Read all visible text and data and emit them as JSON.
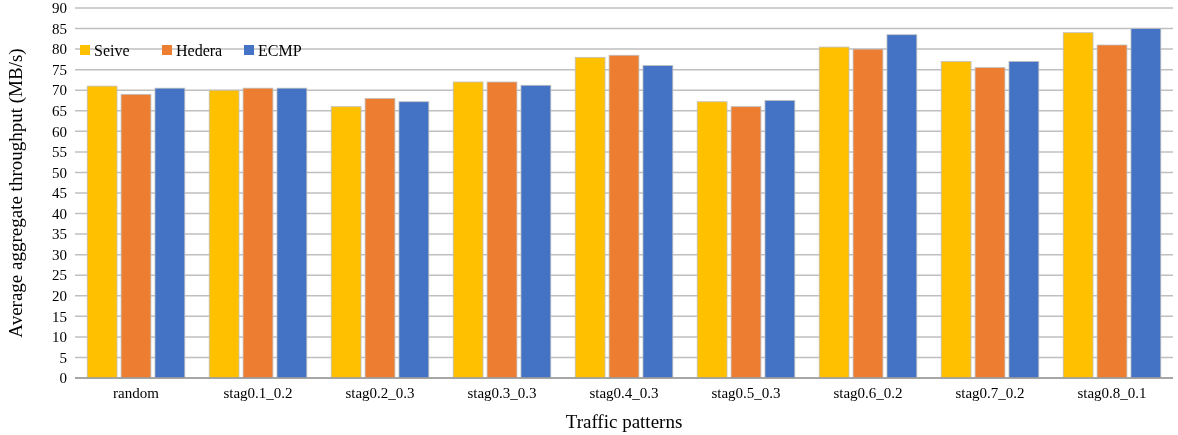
{
  "chart_data": {
    "type": "bar",
    "xlabel": "Traffic patterns",
    "ylabel": "Average aggregate throughput (MB/s)",
    "categories": [
      "random",
      "stag0.1_0.2",
      "stag0.2_0.3",
      "stag0.3_0.3",
      "stag0.4_0.3",
      "stag0.5_0.3",
      "stag0.6_0.2",
      "stag0.7_0.2",
      "stag0.8_0.1"
    ],
    "series": [
      {
        "name": "Seive",
        "color": "#ffc000",
        "values": [
          71,
          70,
          66,
          72,
          78,
          67.2,
          80.5,
          77,
          84
        ]
      },
      {
        "name": "Hedera",
        "color": "#ed7d31",
        "values": [
          69,
          70.5,
          68,
          72,
          78.5,
          66,
          80,
          75.5,
          81
        ]
      },
      {
        "name": "ECMP",
        "color": "#4472c4",
        "values": [
          70.5,
          70.5,
          67.2,
          71.2,
          76,
          67.5,
          83.5,
          77,
          85
        ]
      }
    ],
    "ylim": [
      0,
      90
    ],
    "yticks": [
      0,
      5,
      10,
      15,
      20,
      25,
      30,
      35,
      40,
      45,
      50,
      55,
      60,
      65,
      70,
      75,
      80,
      85,
      90
    ],
    "grid": "y",
    "legend": "top left"
  }
}
